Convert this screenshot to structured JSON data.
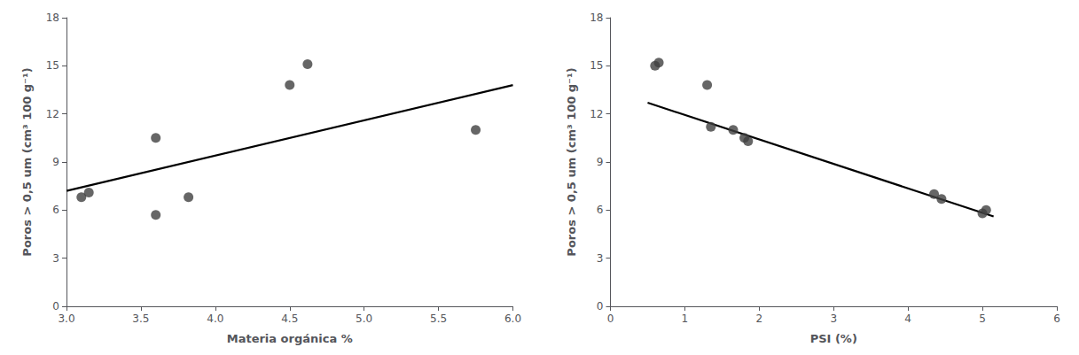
{
  "chart_data": [
    {
      "type": "scatter",
      "xlabel": "Materia orgánica %",
      "ylabel": "Poros > 0,5 um (cm³ 100 g⁻¹)",
      "series": [
        {
          "type": "scatter",
          "color": "#404040",
          "x": [
            3.1,
            3.15,
            3.6,
            3.6,
            3.82,
            4.5,
            4.62,
            5.75
          ],
          "values": [
            6.8,
            7.1,
            10.5,
            5.7,
            6.8,
            13.8,
            15.1,
            11.0
          ]
        },
        {
          "type": "line",
          "color": "#000000",
          "x": [
            3.0,
            6.0
          ],
          "values": [
            7.2,
            13.8
          ]
        }
      ],
      "xlim": [
        3.0,
        6.0
      ],
      "ylim": [
        0,
        18
      ],
      "xticks": [
        {
          "value": 3.0,
          "label": "3.0"
        },
        3.5,
        {
          "value": 4.0,
          "label": "4.0"
        },
        4.5,
        {
          "value": 5.0,
          "label": "5.0"
        },
        5.5,
        {
          "value": 6.0,
          "label": "6.0"
        }
      ],
      "yticks": [
        0,
        3,
        6,
        9,
        12,
        15,
        18
      ],
      "grid": false
    },
    {
      "type": "scatter",
      "xlabel": "PSI (%)",
      "ylabel": "Poros > 0,5 um (cm³ 100 g⁻¹)",
      "series": [
        {
          "type": "scatter",
          "color": "#404040",
          "x": [
            0.6,
            0.65,
            1.3,
            1.35,
            1.65,
            1.8,
            1.85,
            4.35,
            4.45,
            5.0,
            5.05
          ],
          "values": [
            15.0,
            15.2,
            13.8,
            11.2,
            11.0,
            10.5,
            10.3,
            7.0,
            6.7,
            5.8,
            6.0
          ]
        },
        {
          "type": "line",
          "color": "#000000",
          "x": [
            0.5,
            5.15
          ],
          "values": [
            12.7,
            5.6
          ]
        }
      ],
      "xlim": [
        0,
        6
      ],
      "ylim": [
        0,
        18
      ],
      "xticks": [
        0,
        1,
        2,
        3,
        4,
        5,
        6
      ],
      "yticks": [
        0,
        3,
        6,
        9,
        12,
        15,
        18
      ],
      "grid": false
    }
  ]
}
